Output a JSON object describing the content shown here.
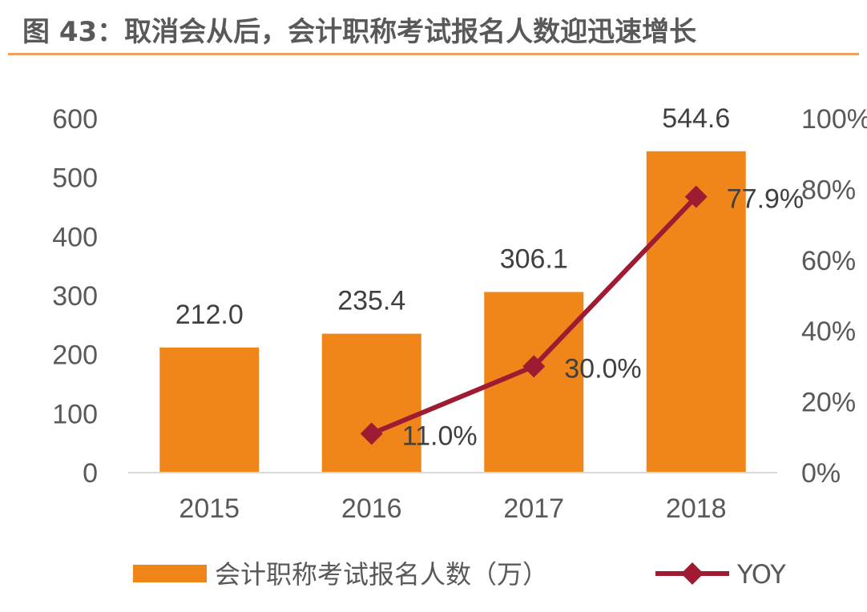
{
  "title": "图 43：取消会从后，会计职称考试报名人数迎迅速增长",
  "colors": {
    "bar": "#f08519",
    "line": "#9e1b32",
    "accent_rule": "#f0a060",
    "text": "#595959"
  },
  "chart_data": {
    "type": "bar",
    "categories": [
      "2015",
      "2016",
      "2017",
      "2018"
    ],
    "series": [
      {
        "name": "会计职称考试报名人数（万）",
        "type": "bar",
        "axis": "left",
        "values": [
          212.0,
          235.4,
          306.1,
          544.6
        ],
        "labels": [
          "212.0",
          "235.4",
          "306.1",
          "544.6"
        ]
      },
      {
        "name": "YOY",
        "type": "line",
        "axis": "right",
        "marker": "diamond",
        "values": [
          null,
          11.0,
          30.0,
          77.9
        ],
        "labels": [
          "",
          "11.0%",
          "30.0%",
          "77.9%"
        ]
      }
    ],
    "left_axis": {
      "ylim": [
        0,
        600
      ],
      "ticks": [
        "0",
        "100",
        "200",
        "300",
        "400",
        "500",
        "600"
      ]
    },
    "right_axis": {
      "ylim": [
        0,
        100
      ],
      "ticks": [
        "0%",
        "20%",
        "40%",
        "60%",
        "80%",
        "100%"
      ]
    },
    "grid": false,
    "legend_position": "bottom"
  }
}
